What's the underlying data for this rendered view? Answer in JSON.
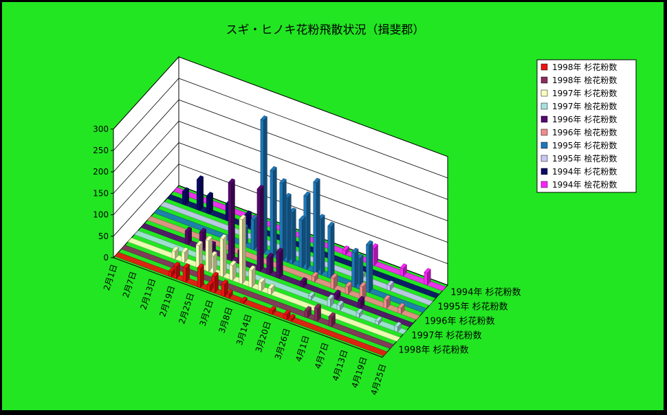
{
  "chart_data": {
    "type": "bar",
    "title": "スギ・ヒノキ花粉飛散状況（揖斐郡）",
    "ylim": [
      0,
      300
    ],
    "y_ticks": [
      "0",
      "50",
      "100",
      "150",
      "200",
      "250",
      "300"
    ],
    "x_tick_labels": [
      "2月1日",
      "2月7日",
      "2月13日",
      "2月19日",
      "2月25日",
      "3月2日",
      "3月8日",
      "3月14日",
      "3月20日",
      "3月26日",
      "4月1日",
      "4月7日",
      "4月13日",
      "4月19日",
      "4月25日"
    ],
    "depth_tick_labels": [
      "1994年 杉花粉数",
      "1995年 杉花粉数",
      "1996年 杉花粉数",
      "1997年 杉花粉数",
      "1998年 杉花粉数"
    ],
    "legend_position": "right",
    "background": "#22e622",
    "series": [
      {
        "name": "1998年 杉花粉数",
        "color": "#ee1111",
        "bars": [
          [
            11,
            12
          ],
          [
            12,
            28
          ],
          [
            14,
            33
          ],
          [
            17,
            45
          ],
          [
            19,
            14
          ],
          [
            20,
            38
          ],
          [
            22,
            28
          ],
          [
            23,
            10
          ],
          [
            26,
            5
          ],
          [
            32,
            8
          ],
          [
            35,
            12
          ],
          [
            36,
            6
          ]
        ]
      },
      {
        "name": "1998年 桧花粉数",
        "color": "#8b2b5e",
        "bars": [
          [
            38,
            16
          ],
          [
            40,
            30
          ],
          [
            43,
            22
          ]
        ]
      },
      {
        "name": "1997年 杉花粉数",
        "color": "#ffffc0",
        "bars": [
          [
            9,
            18
          ],
          [
            11,
            24
          ],
          [
            14,
            52
          ],
          [
            16,
            72
          ],
          [
            17,
            40
          ],
          [
            19,
            88
          ],
          [
            21,
            35
          ],
          [
            23,
            150
          ],
          [
            25,
            40
          ],
          [
            27,
            20
          ],
          [
            29,
            14
          ]
        ]
      },
      {
        "name": "1997年 桧花粉数",
        "color": "#a8e0e0",
        "bars": [
          [
            36,
            8
          ],
          [
            40,
            18
          ],
          [
            42,
            12
          ],
          [
            46,
            10
          ],
          [
            50,
            8
          ],
          [
            54,
            12
          ]
        ]
      },
      {
        "name": "1996年 杉花粉数",
        "color": "#55086f",
        "bars": [
          [
            9,
            30
          ],
          [
            12,
            40
          ],
          [
            14,
            18
          ],
          [
            18,
            180
          ],
          [
            20,
            30
          ],
          [
            24,
            190
          ],
          [
            26,
            40
          ],
          [
            28,
            60
          ],
          [
            33,
            12
          ],
          [
            40,
            12
          ],
          [
            45,
            18
          ]
        ]
      },
      {
        "name": "1996年 桧花粉数",
        "color": "#f08c8c",
        "bars": [
          [
            34,
            12
          ],
          [
            38,
            25
          ],
          [
            41,
            18
          ],
          [
            44,
            30
          ],
          [
            49,
            20
          ],
          [
            52,
            14
          ]
        ]
      },
      {
        "name": "1995年 杉花粉数",
        "color": "#1d77b8",
        "bars": [
          [
            18,
            40
          ],
          [
            20,
            70
          ],
          [
            22,
            310
          ],
          [
            24,
            200
          ],
          [
            26,
            180
          ],
          [
            27,
            150
          ],
          [
            28,
            120
          ],
          [
            30,
            110
          ],
          [
            31,
            170
          ],
          [
            33,
            210
          ],
          [
            34,
            130
          ],
          [
            36,
            120
          ],
          [
            41,
            80
          ],
          [
            42,
            70
          ],
          [
            44,
            110
          ]
        ]
      },
      {
        "name": "1995年 桧花粉数",
        "color": "#c8c8f4",
        "bars": [
          [
            41,
            10
          ],
          [
            47,
            12
          ]
        ]
      },
      {
        "name": "1994年 杉花粉数",
        "color": "#0a0a6a",
        "bars": [
          [
            3,
            30
          ],
          [
            6,
            70
          ],
          [
            8,
            40
          ],
          [
            12,
            38
          ],
          [
            16,
            30
          ]
        ]
      },
      {
        "name": "1994年 桧花粉数",
        "color": "#ff22ff",
        "bars": [
          [
            35,
            10
          ],
          [
            41,
            40
          ],
          [
            47,
            18
          ],
          [
            52,
            28
          ]
        ]
      }
    ]
  }
}
